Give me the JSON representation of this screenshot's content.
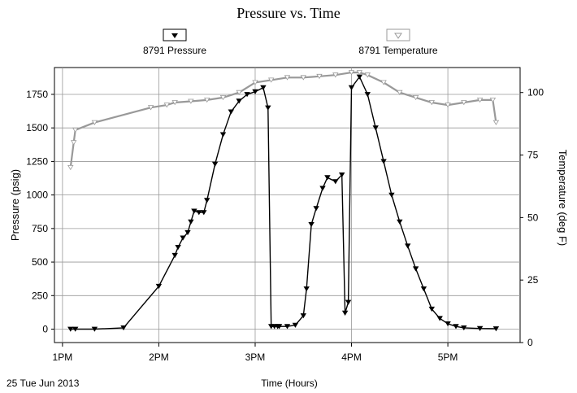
{
  "chart_data": {
    "type": "line",
    "title": "Pressure vs. Time",
    "xlabel": "Time (Hours)",
    "x_date_label": "25 Tue Jun 2013",
    "ylabel_left": "Pressure (psig)",
    "ylabel_right": "Temperature (deg F)",
    "x_ticks": [
      "1PM",
      "2PM",
      "3PM",
      "4PM",
      "5PM"
    ],
    "xlim": [
      "12:55",
      "17:45"
    ],
    "ylim_left": [
      -100,
      1950
    ],
    "ylim_right": [
      0,
      110
    ],
    "yticks_left": [
      0,
      250,
      500,
      750,
      1000,
      1250,
      1500,
      1750
    ],
    "yticks_right": [
      0,
      25,
      50,
      75,
      100
    ],
    "grid": true,
    "legend_position": "top",
    "series": [
      {
        "name": "8791 Pressure",
        "axis": "left",
        "color": "#000000",
        "marker": "filled-triangle-down",
        "x": [
          "13:05",
          "13:08",
          "13:20",
          "13:38",
          "14:00",
          "14:10",
          "14:12",
          "14:15",
          "14:18",
          "14:20",
          "14:22",
          "14:25",
          "14:28",
          "14:30",
          "14:35",
          "14:40",
          "14:45",
          "14:50",
          "14:55",
          "15:00",
          "15:05",
          "15:08",
          "15:10",
          "15:12",
          "15:14",
          "15:15",
          "15:20",
          "15:25",
          "15:30",
          "15:32",
          "15:35",
          "15:38",
          "15:42",
          "15:45",
          "15:50",
          "15:54",
          "15:56",
          "15:58",
          "16:00",
          "16:05",
          "16:10",
          "16:15",
          "16:20",
          "16:25",
          "16:30",
          "16:35",
          "16:40",
          "16:45",
          "16:50",
          "16:55",
          "17:00",
          "17:05",
          "17:10",
          "17:20",
          "17:30"
        ],
        "y": [
          0,
          0,
          0,
          10,
          320,
          550,
          610,
          680,
          720,
          800,
          880,
          870,
          870,
          960,
          1230,
          1450,
          1620,
          1700,
          1750,
          1770,
          1800,
          1650,
          20,
          20,
          20,
          20,
          20,
          30,
          100,
          300,
          780,
          900,
          1050,
          1130,
          1100,
          1150,
          120,
          200,
          1800,
          1880,
          1750,
          1500,
          1250,
          1000,
          800,
          620,
          450,
          300,
          150,
          80,
          40,
          20,
          10,
          5,
          3
        ]
      },
      {
        "name": "8791 Temperature",
        "axis": "right",
        "color": "#999999",
        "marker": "hollow-triangle-down",
        "x": [
          "13:05",
          "13:07",
          "13:08",
          "13:20",
          "13:55",
          "14:05",
          "14:10",
          "14:20",
          "14:30",
          "14:40",
          "14:50",
          "15:00",
          "15:10",
          "15:20",
          "15:30",
          "15:40",
          "15:50",
          "16:00",
          "16:05",
          "16:10",
          "16:20",
          "16:30",
          "16:40",
          "16:50",
          "17:00",
          "17:10",
          "17:20",
          "17:28",
          "17:30"
        ],
        "y": [
          70,
          80,
          85,
          88,
          94,
          95,
          96,
          96.5,
          97,
          98,
          100,
          104,
          105,
          106,
          106,
          106.5,
          107,
          108,
          108,
          107,
          104,
          100,
          98,
          96,
          95,
          96,
          97,
          97,
          88
        ]
      }
    ]
  }
}
